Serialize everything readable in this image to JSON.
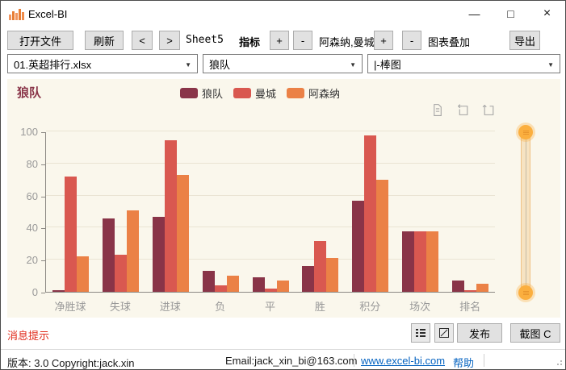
{
  "titlebar": {
    "title": "Excel-BI"
  },
  "window_controls": {
    "minimize": "—",
    "maximize": "□",
    "close": "×"
  },
  "toolbar": {
    "open_file": "打开文件",
    "refresh": "刷新",
    "prev": "<",
    "next": ">",
    "sheet_name": "Sheet5",
    "indicator_label": "指标",
    "indicator_add": "+",
    "indicator_remove": "-",
    "indicator_value": "阿森纳,曼城",
    "overlay_add": "+",
    "overlay_remove": "-",
    "overlay_label": "图表叠加",
    "export": "导出"
  },
  "selectors": {
    "file_selected": "01.英超排行.xlsx",
    "team_selected": "狼队",
    "chart_type_selected": "|-棒图"
  },
  "chart_data": {
    "type": "bar",
    "title": "狼队",
    "categories": [
      "净胜球",
      "失球",
      "进球",
      "负",
      "平",
      "胜",
      "积分",
      "场次",
      "排名"
    ],
    "series": [
      {
        "name": "狼队",
        "color": "#893448",
        "values": [
          1,
          46,
          47,
          13,
          9,
          16,
          57,
          38,
          7
        ]
      },
      {
        "name": "曼城",
        "color": "#d95850",
        "values": [
          72,
          23,
          95,
          4,
          2,
          32,
          98,
          38,
          1
        ]
      },
      {
        "name": "阿森纳",
        "color": "#eb8146",
        "values": [
          22,
          51,
          73,
          10,
          7,
          21,
          70,
          38,
          5
        ]
      }
    ],
    "ylim": [
      0,
      100
    ],
    "yticks": [
      0,
      20,
      40,
      60,
      80,
      100
    ],
    "grid": true,
    "legend_position": "top-center",
    "background": "#faf7ec"
  },
  "icons": {
    "titlebar": "bar-chart-icon",
    "combo": "chevron-down-icon",
    "chart_toolbox": [
      "data-view-icon",
      "restore-icon",
      "save-image-icon"
    ],
    "bottom": [
      "grid-list-icon",
      "crop-icon"
    ],
    "datazoom": "slider-handle-icon"
  },
  "bottom": {
    "message": "消息提示",
    "publish": "发布",
    "screenshot": "截图 C"
  },
  "statusbar": {
    "version": "版本: 3.0  Copyright:jack.xin",
    "email": "Email:jack_xin_bi@163.com",
    "website": "www.excel-bi.com",
    "help": "帮助"
  },
  "colors": {
    "series": [
      "#893448",
      "#d95850",
      "#eb8146"
    ],
    "chart_background": "#faf7ec",
    "chart_title": "#893448",
    "message_text": "#e02a1a",
    "link": "#0563c1",
    "slider_handle": "#fbaf3f"
  }
}
